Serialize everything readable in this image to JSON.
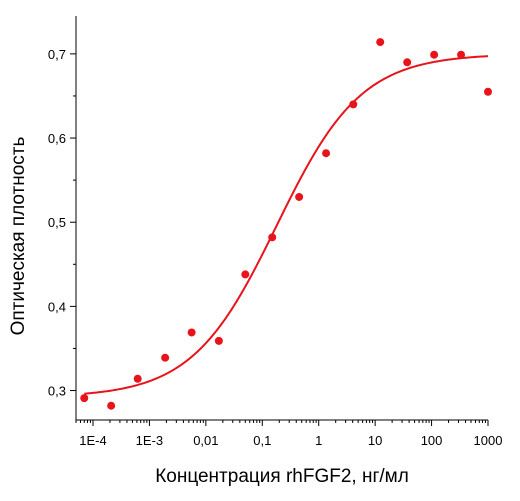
{
  "chart_data": {
    "type": "scatter",
    "title": "",
    "xlabel": "Концентрация rhFGF2, нг/мл",
    "ylabel": "Оптическая плотность",
    "x_scale": "log",
    "xlim": [
      5e-05,
      1000
    ],
    "ylim": [
      0.265,
      0.745
    ],
    "x_ticks": [
      {
        "value": 0.0001,
        "label": "1E-4"
      },
      {
        "value": 0.001,
        "label": "1E-3"
      },
      {
        "value": 0.01,
        "label": "0,01"
      },
      {
        "value": 0.1,
        "label": "0,1"
      },
      {
        "value": 1,
        "label": "1"
      },
      {
        "value": 10,
        "label": "10"
      },
      {
        "value": 100,
        "label": "100"
      },
      {
        "value": 1000,
        "label": "1000"
      }
    ],
    "y_ticks": [
      {
        "value": 0.3,
        "label": "0,3"
      },
      {
        "value": 0.4,
        "label": "0,4"
      },
      {
        "value": 0.5,
        "label": "0,5"
      },
      {
        "value": 0.6,
        "label": "0,6"
      },
      {
        "value": 0.7,
        "label": "0,7"
      }
    ],
    "color": "#e8141b",
    "points": [
      {
        "x": 7e-05,
        "y": 0.291
      },
      {
        "x": 0.00021,
        "y": 0.282
      },
      {
        "x": 0.00062,
        "y": 0.314
      },
      {
        "x": 0.0019,
        "y": 0.339
      },
      {
        "x": 0.0056,
        "y": 0.369
      },
      {
        "x": 0.017,
        "y": 0.359
      },
      {
        "x": 0.05,
        "y": 0.438
      },
      {
        "x": 0.15,
        "y": 0.482
      },
      {
        "x": 0.45,
        "y": 0.53
      },
      {
        "x": 1.35,
        "y": 0.582
      },
      {
        "x": 4.1,
        "y": 0.64
      },
      {
        "x": 12.3,
        "y": 0.714
      },
      {
        "x": 37,
        "y": 0.69
      },
      {
        "x": 111,
        "y": 0.699
      },
      {
        "x": 333,
        "y": 0.699
      },
      {
        "x": 1000,
        "y": 0.655
      }
    ],
    "fit_curve": {
      "type": "logistic",
      "bottom": 0.292,
      "top": 0.7,
      "ec50": 0.18,
      "hill": 0.58
    },
    "grid": false,
    "legend": "none"
  }
}
